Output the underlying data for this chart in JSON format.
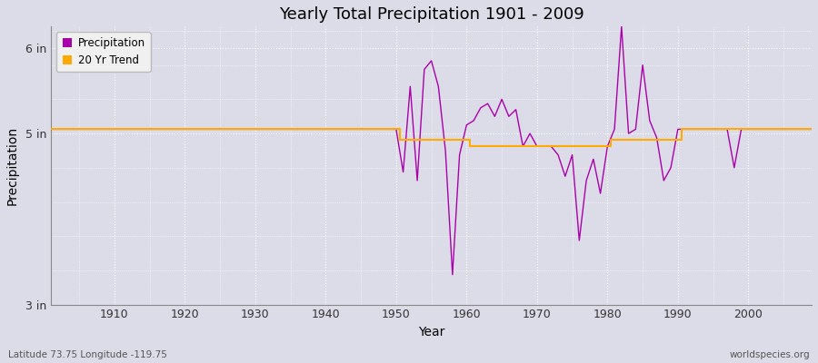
{
  "title": "Yearly Total Precipitation 1901 - 2009",
  "xlabel": "Year",
  "ylabel": "Precipitation",
  "bottom_left_label": "Latitude 73.75 Longitude -119.75",
  "bottom_right_label": "worldspecies.org",
  "legend_labels": [
    "Precipitation",
    "20 Yr Trend"
  ],
  "precip_color": "#aa00aa",
  "trend_color": "#ffaa00",
  "background_color": "#dcdce8",
  "grid_color": "#ffffff",
  "years": [
    1901,
    1902,
    1903,
    1904,
    1905,
    1906,
    1907,
    1908,
    1909,
    1910,
    1911,
    1912,
    1913,
    1914,
    1915,
    1916,
    1917,
    1918,
    1919,
    1920,
    1921,
    1922,
    1923,
    1924,
    1925,
    1926,
    1927,
    1928,
    1929,
    1930,
    1931,
    1932,
    1933,
    1934,
    1935,
    1936,
    1937,
    1938,
    1939,
    1940,
    1941,
    1942,
    1943,
    1944,
    1945,
    1946,
    1947,
    1948,
    1949,
    1950,
    1951,
    1952,
    1953,
    1954,
    1955,
    1956,
    1957,
    1958,
    1959,
    1960,
    1961,
    1962,
    1963,
    1964,
    1965,
    1966,
    1967,
    1968,
    1969,
    1970,
    1971,
    1972,
    1973,
    1974,
    1975,
    1976,
    1977,
    1978,
    1979,
    1980,
    1981,
    1982,
    1983,
    1984,
    1985,
    1986,
    1987,
    1988,
    1989,
    1990,
    1991,
    1992,
    1993,
    1994,
    1995,
    1996,
    1997,
    1998,
    1999,
    2000,
    2001,
    2002,
    2003,
    2004,
    2005,
    2006,
    2007,
    2008,
    2009
  ],
  "precipitation": [
    5.05,
    5.05,
    5.05,
    5.05,
    5.05,
    5.05,
    5.05,
    5.05,
    5.05,
    5.05,
    5.05,
    5.05,
    5.05,
    5.05,
    5.05,
    5.05,
    5.05,
    5.05,
    5.05,
    5.05,
    5.05,
    5.05,
    5.05,
    5.05,
    5.05,
    5.05,
    5.05,
    5.05,
    5.05,
    5.05,
    5.05,
    5.05,
    5.05,
    5.05,
    5.05,
    5.05,
    5.05,
    5.05,
    5.05,
    5.05,
    5.05,
    5.05,
    5.05,
    5.05,
    5.05,
    5.05,
    5.05,
    5.05,
    5.05,
    5.05,
    4.55,
    5.55,
    4.45,
    5.75,
    5.85,
    5.55,
    4.8,
    3.35,
    4.75,
    5.1,
    5.15,
    5.3,
    5.35,
    5.2,
    5.4,
    5.2,
    5.28,
    4.85,
    5.0,
    4.85,
    4.85,
    4.85,
    4.75,
    4.5,
    4.75,
    3.75,
    4.45,
    4.7,
    4.3,
    4.85,
    5.05,
    6.25,
    5.0,
    5.05,
    5.8,
    5.15,
    4.95,
    4.45,
    4.6,
    5.05,
    5.05,
    5.05,
    5.05,
    5.05,
    5.05,
    5.05,
    5.05,
    4.6,
    5.05,
    5.05,
    5.05,
    5.05,
    5.05,
    5.05,
    5.05,
    5.05,
    5.05,
    5.05,
    5.05
  ],
  "trend": [
    5.05,
    5.05,
    5.05,
    5.05,
    5.05,
    5.05,
    5.05,
    5.05,
    5.05,
    5.05,
    5.05,
    5.05,
    5.05,
    5.05,
    5.05,
    5.05,
    5.05,
    5.05,
    5.05,
    5.05,
    5.05,
    5.05,
    5.05,
    5.05,
    5.05,
    5.05,
    5.05,
    5.05,
    5.05,
    5.05,
    5.05,
    5.05,
    5.05,
    5.05,
    5.05,
    5.05,
    5.05,
    5.05,
    5.05,
    5.05,
    5.05,
    5.05,
    5.05,
    5.05,
    5.05,
    5.05,
    5.05,
    5.05,
    5.05,
    5.05,
    4.93,
    4.93,
    4.93,
    4.93,
    4.93,
    4.93,
    4.93,
    4.93,
    4.93,
    4.93,
    4.85,
    4.85,
    4.85,
    4.85,
    4.85,
    4.85,
    4.85,
    4.85,
    4.85,
    4.85,
    4.85,
    4.85,
    4.85,
    4.85,
    4.85,
    4.85,
    4.85,
    4.85,
    4.85,
    4.85,
    4.93,
    4.93,
    4.93,
    4.93,
    4.93,
    4.93,
    4.93,
    4.93,
    4.93,
    4.93,
    5.05,
    5.05,
    5.05,
    5.05,
    5.05,
    5.05,
    5.05,
    5.05,
    5.05,
    5.05,
    5.05,
    5.05,
    5.05,
    5.05,
    5.05,
    5.05,
    5.05,
    5.05,
    5.05
  ],
  "ylim": [
    3.0,
    6.25
  ],
  "yticks": [
    3.0,
    5.0,
    6.0
  ],
  "ytick_labels": [
    "3 in",
    "5 in",
    "6 in"
  ],
  "xlim": [
    1901,
    2009
  ],
  "xticks": [
    1910,
    1920,
    1930,
    1940,
    1950,
    1960,
    1970,
    1980,
    1990,
    2000
  ],
  "figsize": [
    9.0,
    4.0
  ],
  "dpi": 100
}
